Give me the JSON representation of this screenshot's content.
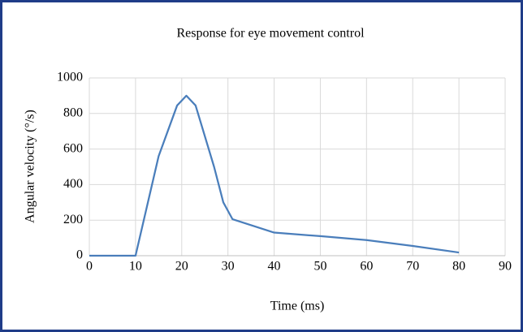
{
  "chart_data": {
    "type": "line",
    "title": "Response for eye movement control",
    "x_label": "Time (ms)",
    "y_label": "Angular velocity (°/s)",
    "x": [
      0,
      10,
      15,
      19,
      21,
      23,
      27,
      29,
      31,
      40,
      50,
      60,
      70,
      80
    ],
    "series": [
      {
        "name": "Angular velocity",
        "color": "#4a7ebb",
        "values": [
          0,
          0,
          560,
          845,
          900,
          845,
          500,
          300,
          205,
          130,
          110,
          88,
          55,
          18
        ]
      }
    ],
    "xlim": [
      0,
      90
    ],
    "xticks": [
      0,
      10,
      20,
      30,
      40,
      50,
      60,
      70,
      80,
      90
    ],
    "ylim": [
      0,
      1000
    ],
    "yticks": [
      0,
      200,
      400,
      600,
      800,
      1000
    ],
    "grid": true
  }
}
